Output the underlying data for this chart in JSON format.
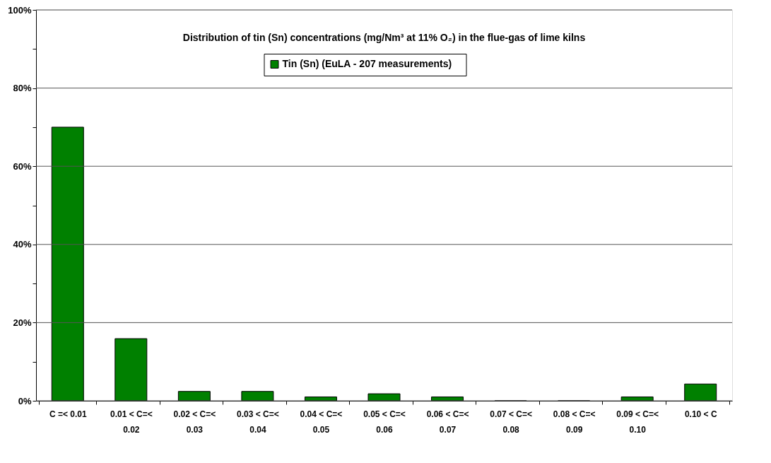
{
  "chart_data": {
    "type": "bar",
    "title": "Distribution of tin (Sn) concentrations (mg/Nm³ at 11% O₂) in the flue-gas of lime kilns",
    "categories": [
      "C =< 0.01",
      "0.01 < C=< 0.02",
      "0.02 < C=< 0.03",
      "0.03 < C=< 0.04",
      "0.04 < C=< 0.05",
      "0.05 < C=< 0.06",
      "0.06 < C=< 0.07",
      "0.07 < C=< 0.08",
      "0.08 < C=< 0.09",
      "0.09 < C=< 0.10",
      "0.10 < C"
    ],
    "series": [
      {
        "name": "Tin (Sn)    (EuLA - 207 measurements)",
        "color": "#008000",
        "values": [
          70,
          15.9,
          2.4,
          2.4,
          1.0,
          1.8,
          1.0,
          0,
          0,
          1.0,
          4.3
        ]
      }
    ],
    "ylim": [
      0,
      100
    ],
    "yticks": [
      {
        "value": 0,
        "label": "0%"
      },
      {
        "value": 10,
        "label": null
      },
      {
        "value": 20,
        "label": "20%"
      },
      {
        "value": 30,
        "label": null
      },
      {
        "value": 40,
        "label": "40%"
      },
      {
        "value": 50,
        "label": null
      },
      {
        "value": 60,
        "label": "60%"
      },
      {
        "value": 70,
        "label": null
      },
      {
        "value": 80,
        "label": "80%"
      },
      {
        "value": 90,
        "label": null
      },
      {
        "value": 100,
        "label": "100%"
      }
    ],
    "grid": "y",
    "legend": "top"
  }
}
